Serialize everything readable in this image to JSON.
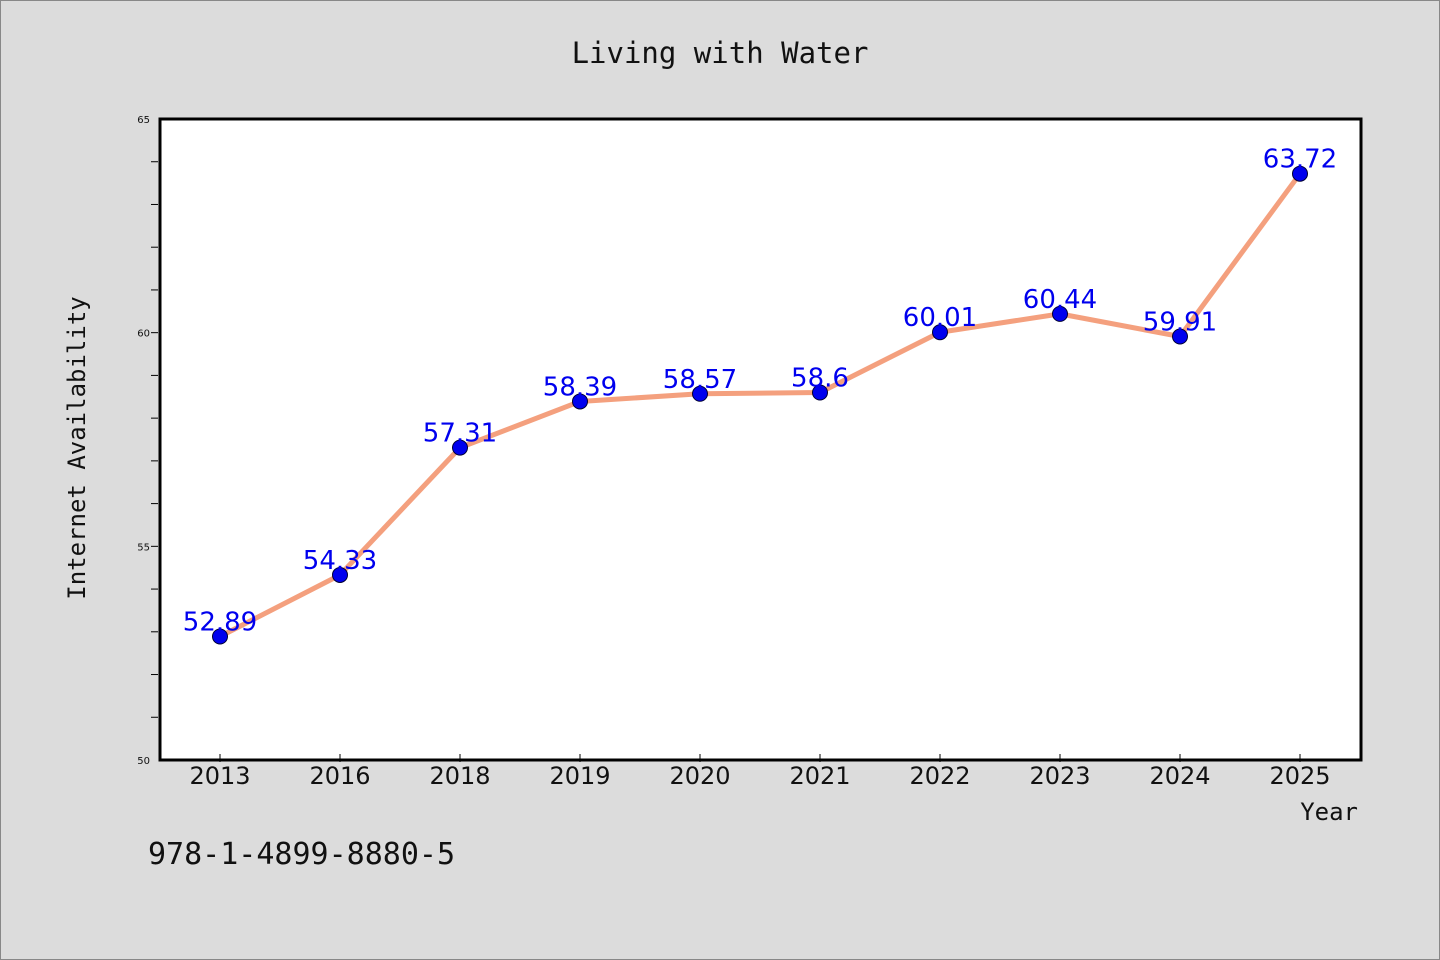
{
  "chart_data": {
    "type": "line",
    "title": "Living with Water",
    "xlabel": "Year",
    "ylabel": "Internet Availability",
    "categories": [
      "2013",
      "2016",
      "2018",
      "2019",
      "2020",
      "2021",
      "2022",
      "2023",
      "2024",
      "2025"
    ],
    "values": [
      52.89,
      54.33,
      57.31,
      58.39,
      58.57,
      58.6,
      60.01,
      60.44,
      59.91,
      63.72
    ],
    "data_labels": [
      "52.89",
      "54.33",
      "57.31",
      "58.39",
      "58.57",
      "58.6",
      "60.01",
      "60.44",
      "59.91",
      "63.72"
    ],
    "ylim": [
      50,
      65
    ],
    "yticks": [
      50,
      55,
      60,
      65
    ],
    "ytick_labels": [
      "50",
      "55",
      "60",
      "65"
    ],
    "grid": false,
    "line_color": "#f4a07e",
    "marker_color": "#0000ee",
    "label_color": "#0000ee"
  },
  "footer": {
    "isbn": "978-1-4899-8880-5"
  }
}
